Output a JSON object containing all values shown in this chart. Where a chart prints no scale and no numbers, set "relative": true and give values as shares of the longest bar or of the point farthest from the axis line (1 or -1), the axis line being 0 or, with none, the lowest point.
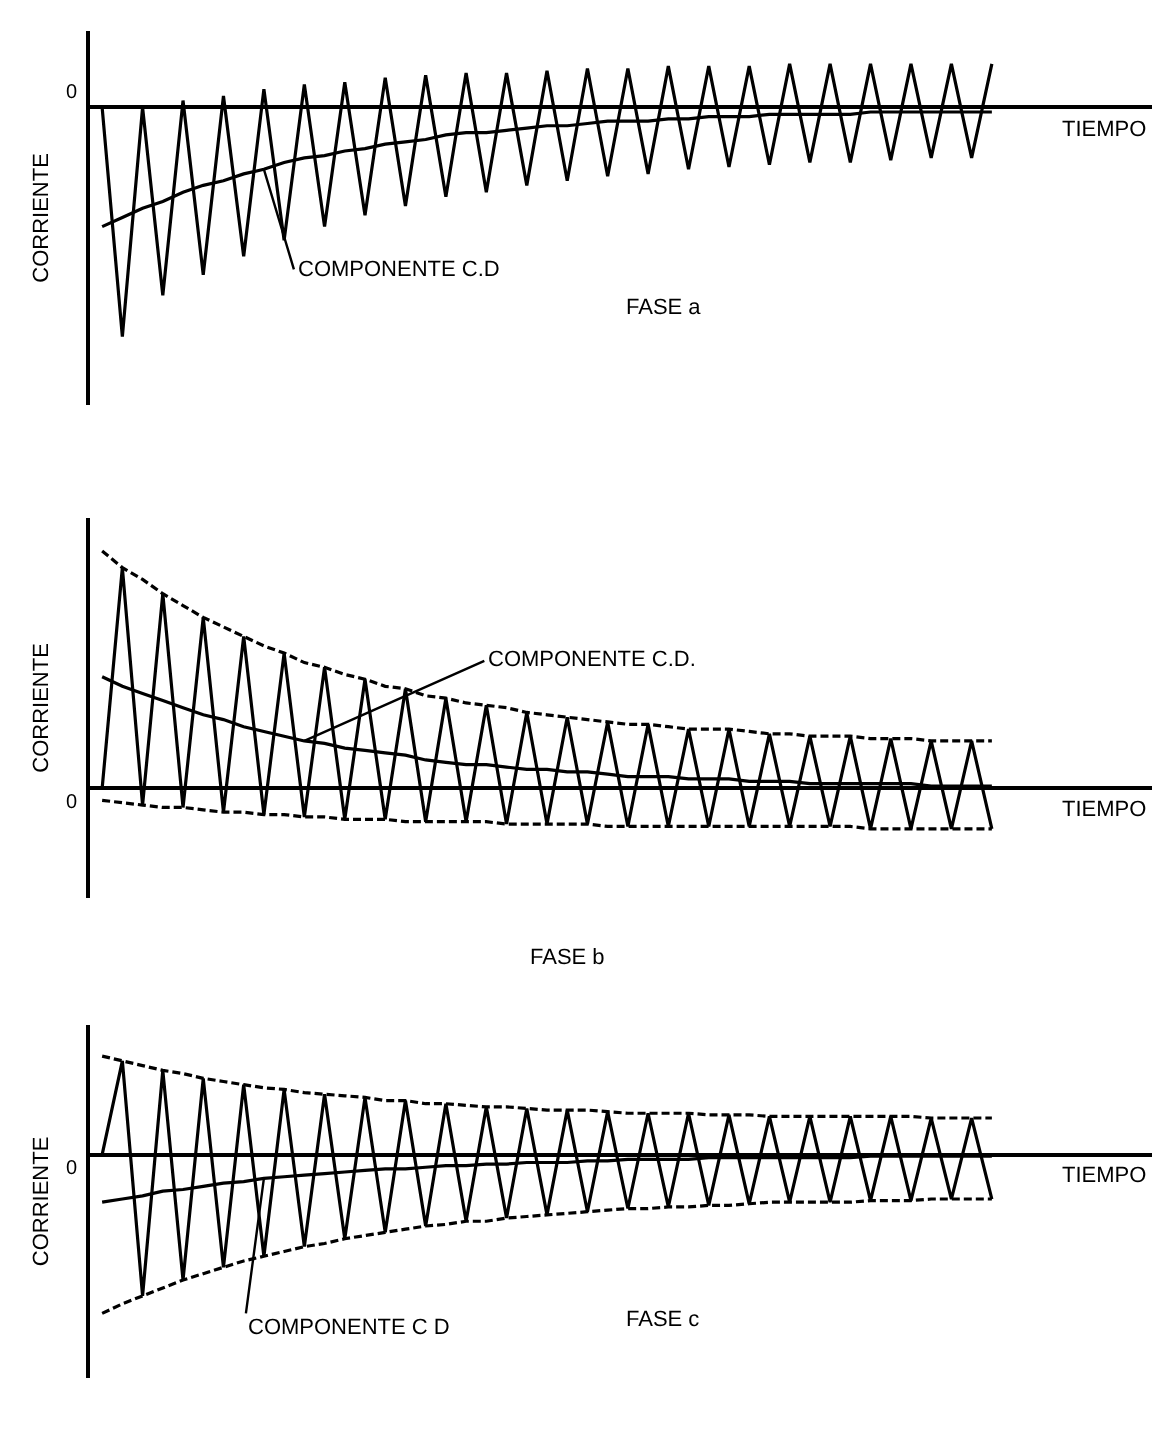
{
  "chart_data": [
    {
      "type": "line",
      "relative": true,
      "title": "FASE a",
      "xlabel": "TIEMPO",
      "ylabel": "CORRIENTE",
      "annotations": [
        "0"
      ],
      "categories": [
        null,
        null,
        null,
        null,
        null,
        null,
        null,
        null,
        null,
        null,
        null,
        null,
        null,
        null,
        null,
        null,
        null,
        null,
        null,
        null,
        null,
        null,
        null,
        null,
        null,
        null,
        null,
        null,
        null,
        null,
        null,
        null,
        null,
        null,
        null,
        null,
        null,
        null,
        null,
        null,
        null,
        null,
        null,
        null,
        null
      ],
      "series": [
        {
          "color": "#000000",
          "line_style": "solid",
          "values": [
            0,
            -1,
            0,
            -0.82,
            0.03,
            -0.73,
            0.05,
            -0.65,
            0.08,
            -0.58,
            0.1,
            -0.52,
            0.11,
            -0.47,
            0.13,
            -0.43,
            0.14,
            -0.39,
            0.15,
            -0.37,
            0.15,
            -0.34,
            0.16,
            -0.32,
            0.17,
            -0.3,
            0.17,
            -0.29,
            0.18,
            -0.27,
            0.18,
            -0.26,
            0.18,
            -0.25,
            0.19,
            -0.24,
            0.19,
            -0.24,
            0.19,
            -0.23,
            0.19,
            -0.22,
            0.19,
            -0.22,
            0.19
          ]
        },
        {
          "name": "COMPONENTE C.D",
          "color": "#000000",
          "line_style": "solid",
          "values": [
            -0.52,
            -0.48,
            -0.44,
            -0.41,
            -0.37,
            -0.34,
            -0.32,
            -0.29,
            -0.27,
            -0.24,
            -0.22,
            -0.21,
            -0.19,
            -0.18,
            -0.16,
            -0.15,
            -0.14,
            -0.12,
            -0.11,
            -0.11,
            -0.1,
            -0.09,
            -0.08,
            -0.08,
            -0.07,
            -0.06,
            -0.06,
            -0.06,
            -0.05,
            -0.05,
            -0.04,
            -0.04,
            -0.04,
            -0.03,
            -0.03,
            -0.03,
            -0.03,
            -0.03,
            -0.02,
            -0.02,
            -0.02,
            -0.02,
            -0.02,
            -0.02,
            -0.02
          ]
        }
      ]
    },
    {
      "type": "line",
      "relative": true,
      "title": "FASE b",
      "xlabel": "TIEMPO",
      "ylabel": "CORRIENTE",
      "annotations": [
        "0"
      ],
      "categories": [
        null,
        null,
        null,
        null,
        null,
        null,
        null,
        null,
        null,
        null,
        null,
        null,
        null,
        null,
        null,
        null,
        null,
        null,
        null,
        null,
        null,
        null,
        null,
        null,
        null,
        null,
        null,
        null,
        null,
        null,
        null,
        null,
        null,
        null,
        null,
        null,
        null,
        null,
        null,
        null,
        null,
        null,
        null,
        null,
        null
      ],
      "series": [
        {
          "color": "#000000",
          "line_style": "solid",
          "values": [
            0,
            0.93,
            -0.07,
            0.82,
            -0.08,
            0.72,
            -0.1,
            0.64,
            -0.11,
            0.57,
            -0.12,
            0.51,
            -0.13,
            0.46,
            -0.13,
            0.42,
            -0.14,
            0.38,
            -0.14,
            0.35,
            -0.15,
            0.32,
            -0.15,
            0.3,
            -0.15,
            0.28,
            -0.16,
            0.27,
            -0.16,
            0.25,
            -0.16,
            0.25,
            -0.16,
            0.23,
            -0.16,
            0.22,
            -0.16,
            0.22,
            -0.17,
            0.21,
            -0.17,
            0.2,
            -0.17,
            0.2,
            -0.17
          ]
        },
        {
          "name": "COMPONENTE C.D.",
          "color": "#000000",
          "line_style": "solid",
          "values": [
            0.47,
            0.43,
            0.4,
            0.37,
            0.34,
            0.31,
            0.29,
            0.26,
            0.24,
            0.22,
            0.2,
            0.19,
            0.17,
            0.16,
            0.15,
            0.14,
            0.12,
            0.11,
            0.1,
            0.1,
            0.09,
            0.08,
            0.08,
            0.07,
            0.07,
            0.06,
            0.05,
            0.05,
            0.05,
            0.04,
            0.04,
            0.04,
            0.03,
            0.03,
            0.03,
            0.02,
            0.02,
            0.02,
            0.02,
            0.02,
            0.02,
            0.01,
            0.01,
            0.01,
            0.01
          ]
        },
        {
          "color": "#000000",
          "line_style": "dashed",
          "values": [
            1.0,
            0.93,
            0.88,
            0.82,
            0.77,
            0.72,
            0.68,
            0.64,
            0.6,
            0.57,
            0.53,
            0.51,
            0.48,
            0.46,
            0.43,
            0.42,
            0.39,
            0.38,
            0.36,
            0.35,
            0.34,
            0.32,
            0.31,
            0.3,
            0.29,
            0.28,
            0.27,
            0.27,
            0.26,
            0.25,
            0.25,
            0.25,
            0.24,
            0.23,
            0.23,
            0.22,
            0.22,
            0.22,
            0.21,
            0.21,
            0.21,
            0.2,
            0.2,
            0.2,
            0.2
          ]
        },
        {
          "color": "#000000",
          "line_style": "dashed",
          "values": [
            -0.05,
            -0.06,
            -0.07,
            -0.08,
            -0.08,
            -0.09,
            -0.1,
            -0.1,
            -0.11,
            -0.11,
            -0.12,
            -0.12,
            -0.13,
            -0.13,
            -0.13,
            -0.14,
            -0.14,
            -0.14,
            -0.14,
            -0.14,
            -0.15,
            -0.15,
            -0.15,
            -0.15,
            -0.15,
            -0.16,
            -0.16,
            -0.16,
            -0.16,
            -0.16,
            -0.16,
            -0.16,
            -0.16,
            -0.16,
            -0.16,
            -0.16,
            -0.16,
            -0.16,
            -0.17,
            -0.17,
            -0.17,
            -0.17,
            -0.17,
            -0.17,
            -0.17
          ]
        }
      ]
    },
    {
      "type": "line",
      "relative": true,
      "title": "FASE c",
      "xlabel": "TIEMPO",
      "ylabel": "CORRIENTE",
      "annotations": [
        "0"
      ],
      "categories": [
        null,
        null,
        null,
        null,
        null,
        null,
        null,
        null,
        null,
        null,
        null,
        null,
        null,
        null,
        null,
        null,
        null,
        null,
        null,
        null,
        null,
        null,
        null,
        null,
        null,
        null,
        null,
        null,
        null,
        null,
        null,
        null,
        null,
        null,
        null,
        null,
        null,
        null,
        null,
        null,
        null,
        null,
        null,
        null,
        null
      ],
      "series": [
        {
          "color": "#000000",
          "line_style": "solid",
          "values": [
            0,
            0.59,
            -0.89,
            0.53,
            -0.79,
            0.48,
            -0.71,
            0.44,
            -0.64,
            0.41,
            -0.58,
            0.38,
            -0.53,
            0.36,
            -0.49,
            0.34,
            -0.45,
            0.32,
            -0.42,
            0.3,
            -0.4,
            0.29,
            -0.38,
            0.28,
            -0.36,
            0.27,
            -0.34,
            0.26,
            -0.33,
            0.26,
            -0.32,
            0.25,
            -0.31,
            0.24,
            -0.3,
            0.24,
            -0.3,
            0.24,
            -0.29,
            0.24,
            -0.29,
            0.23,
            -0.28,
            0.23,
            -0.28
          ]
        },
        {
          "name": "COMPONENTE C D",
          "color": "#000000",
          "line_style": "solid",
          "values": [
            -0.3,
            -0.28,
            -0.26,
            -0.23,
            -0.22,
            -0.2,
            -0.18,
            -0.17,
            -0.15,
            -0.14,
            -0.13,
            -0.12,
            -0.11,
            -0.1,
            -0.09,
            -0.09,
            -0.08,
            -0.07,
            -0.07,
            -0.06,
            -0.06,
            -0.05,
            -0.05,
            -0.05,
            -0.04,
            -0.04,
            -0.03,
            -0.03,
            -0.03,
            -0.03,
            -0.02,
            -0.02,
            -0.02,
            -0.02,
            -0.02,
            -0.02,
            -0.02,
            -0.02,
            -0.01,
            -0.01,
            -0.01,
            -0.01,
            -0.01,
            -0.01,
            -0.01
          ]
        },
        {
          "color": "#000000",
          "line_style": "dashed",
          "values": [
            0.62,
            0.59,
            0.56,
            0.53,
            0.51,
            0.48,
            0.46,
            0.44,
            0.42,
            0.41,
            0.39,
            0.38,
            0.37,
            0.36,
            0.34,
            0.34,
            0.32,
            0.32,
            0.31,
            0.3,
            0.3,
            0.29,
            0.28,
            0.28,
            0.28,
            0.27,
            0.26,
            0.26,
            0.26,
            0.26,
            0.25,
            0.25,
            0.25,
            0.24,
            0.24,
            0.24,
            0.24,
            0.24,
            0.24,
            0.24,
            0.24,
            0.23,
            0.23,
            0.23,
            0.23
          ]
        },
        {
          "color": "#000000",
          "line_style": "dashed",
          "values": [
            -1.0,
            -0.94,
            -0.89,
            -0.84,
            -0.79,
            -0.75,
            -0.71,
            -0.67,
            -0.64,
            -0.61,
            -0.58,
            -0.56,
            -0.53,
            -0.51,
            -0.49,
            -0.47,
            -0.45,
            -0.44,
            -0.42,
            -0.42,
            -0.4,
            -0.39,
            -0.38,
            -0.37,
            -0.36,
            -0.35,
            -0.34,
            -0.34,
            -0.33,
            -0.33,
            -0.32,
            -0.32,
            -0.31,
            -0.3,
            -0.3,
            -0.3,
            -0.3,
            -0.3,
            -0.29,
            -0.29,
            -0.29,
            -0.28,
            -0.28,
            -0.28,
            -0.28
          ]
        }
      ]
    }
  ]
}
